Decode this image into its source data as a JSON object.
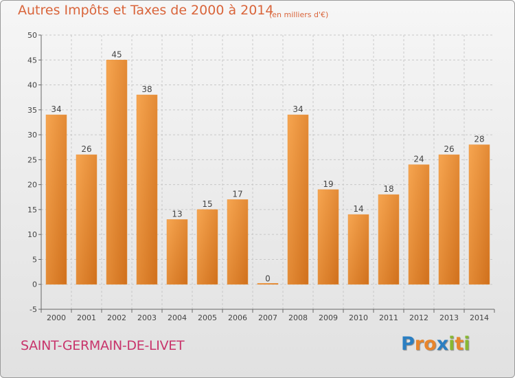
{
  "title": "Autres Impôts et Taxes de 2000 à 2014",
  "subtitle": "(en milliers d'€)",
  "place": "SAINT-GERMAIN-DE-LIVET",
  "logo": {
    "text": "Proxiti",
    "letters": [
      {
        "ch": "P",
        "color": "#2b7fc2"
      },
      {
        "ch": "r",
        "color": "#e8852c"
      },
      {
        "ch": "o",
        "color": "#e8852c"
      },
      {
        "ch": "x",
        "color": "#2b7fc2"
      },
      {
        "ch": "i",
        "color": "#88b832"
      },
      {
        "ch": "t",
        "color": "#e8852c"
      },
      {
        "ch": "i",
        "color": "#88b832"
      }
    ]
  },
  "colors": {
    "title": "#d9643a",
    "place": "#c8346b",
    "bar_light": "#f6a550",
    "bar_dark": "#d0701c"
  },
  "chart_data": {
    "type": "bar",
    "categories": [
      "2000",
      "2001",
      "2002",
      "2003",
      "2004",
      "2005",
      "2006",
      "2007",
      "2008",
      "2009",
      "2010",
      "2011",
      "2012",
      "2013",
      "2014"
    ],
    "values": [
      34,
      26,
      45,
      38,
      13,
      15,
      17,
      0,
      34,
      19,
      14,
      18,
      24,
      26,
      28
    ],
    "title": "Autres Impôts et Taxes de 2000 à 2014",
    "subtitle": "(en milliers d'€)",
    "xlabel": "",
    "ylabel": "",
    "ylim": [
      -5,
      50
    ],
    "yticks": [
      -5,
      0,
      5,
      10,
      15,
      20,
      25,
      30,
      35,
      40,
      45,
      50
    ],
    "grid": true
  }
}
